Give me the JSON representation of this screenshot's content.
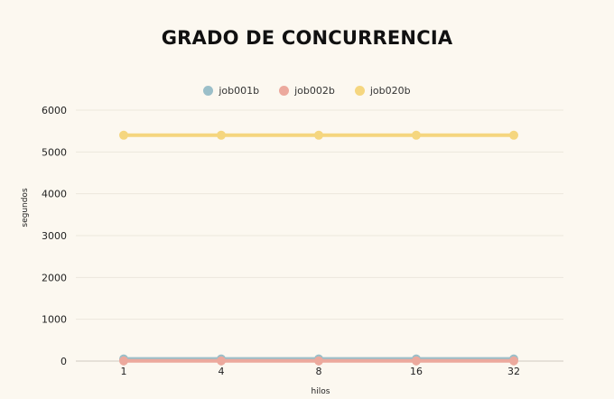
{
  "chart_data": {
    "type": "line",
    "title": "GRADO DE CONCURRENCIA",
    "xlabel": "hilos",
    "ylabel": "segundos",
    "categories": [
      "1",
      "4",
      "8",
      "16",
      "32"
    ],
    "ylim": [
      0,
      6000
    ],
    "yticks": [
      "0",
      "1000",
      "2000",
      "3000",
      "4000",
      "5000",
      "6000"
    ],
    "grid": true,
    "legend_position": "top",
    "series": [
      {
        "name": "job001b",
        "color": "#9bbfc9",
        "values": [
          50,
          50,
          50,
          50,
          50
        ]
      },
      {
        "name": "job002b",
        "color": "#eca99d",
        "values": [
          5,
          5,
          5,
          5,
          5
        ]
      },
      {
        "name": "job020b",
        "color": "#f5d67f",
        "values": [
          5400,
          5400,
          5400,
          5400,
          5400
        ]
      }
    ]
  }
}
